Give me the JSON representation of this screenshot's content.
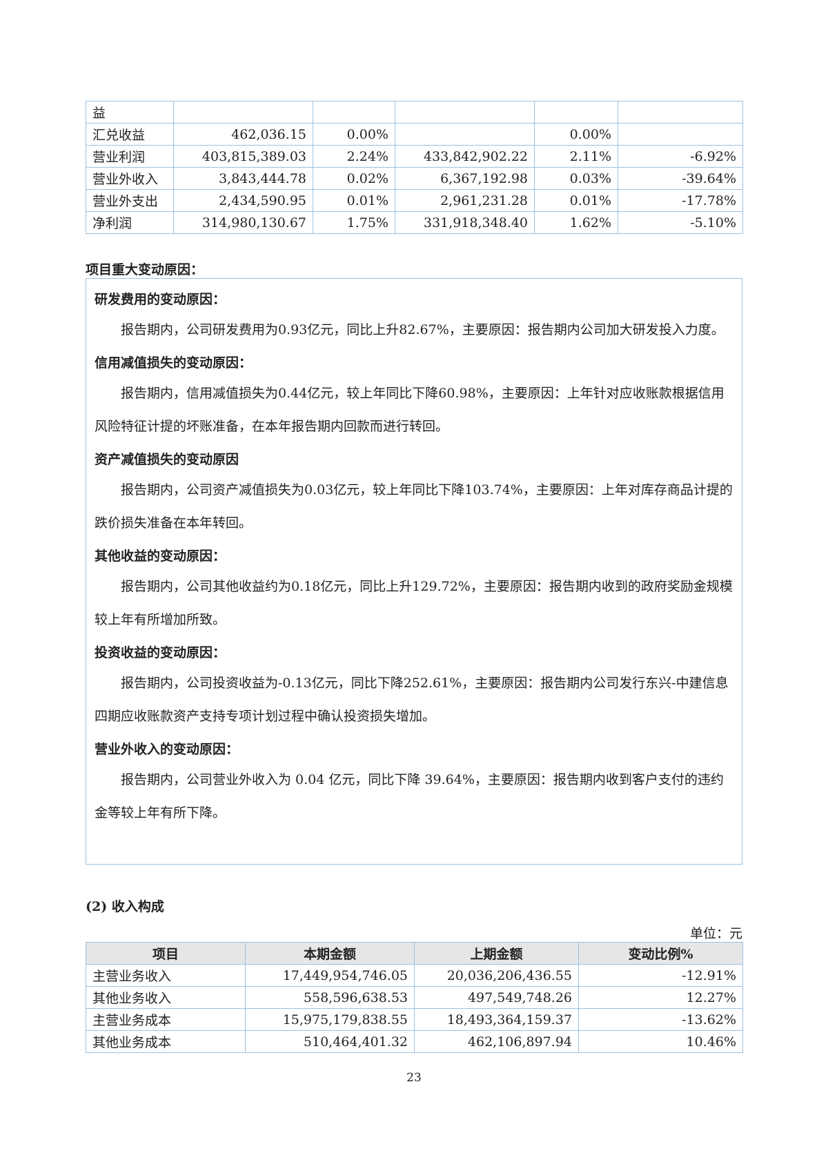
{
  "profit_table": {
    "rows": [
      {
        "item": "益",
        "current": "",
        "current_pct": "",
        "prior": "",
        "prior_pct": "",
        "change": ""
      },
      {
        "item": "汇兑收益",
        "current": "462,036.15",
        "current_pct": "0.00%",
        "prior": "",
        "prior_pct": "0.00%",
        "change": ""
      },
      {
        "item": "营业利润",
        "current": "403,815,389.03",
        "current_pct": "2.24%",
        "prior": "433,842,902.22",
        "prior_pct": "2.11%",
        "change": "-6.92%"
      },
      {
        "item": "营业外收入",
        "current": "3,843,444.78",
        "current_pct": "0.02%",
        "prior": "6,367,192.98",
        "prior_pct": "0.03%",
        "change": "-39.64%"
      },
      {
        "item": "营业外支出",
        "current": "2,434,590.95",
        "current_pct": "0.01%",
        "prior": "2,961,231.28",
        "prior_pct": "0.01%",
        "change": "-17.78%"
      },
      {
        "item": "净利润",
        "current": "314,980,130.67",
        "current_pct": "1.75%",
        "prior": "331,918,348.40",
        "prior_pct": "1.62%",
        "change": "-5.10%"
      }
    ]
  },
  "reasons": {
    "heading": "项目重大变动原因：",
    "sections": [
      {
        "title": "研发费用的变动原因：",
        "text": "报告期内，公司研发费用为0.93亿元，同比上升82.67%，主要原因：报告期内公司加大研发投入力度。"
      },
      {
        "title": "信用减值损失的变动原因：",
        "text": "报告期内，信用减值损失为0.44亿元，较上年同比下降60.98%，主要原因：上年针对应收账款根据信用风险特征计提的坏账准备，在本年报告期内回款而进行转回。"
      },
      {
        "title": "资产减值损失的变动原因",
        "text": "报告期内，公司资产减值损失为0.03亿元，较上年同比下降103.74%，主要原因：上年对库存商品计提的跌价损失准备在本年转回。"
      },
      {
        "title": "其他收益的变动原因：",
        "text": "报告期内，公司其他收益约为0.18亿元，同比上升129.72%，主要原因：报告期内收到的政府奖励金规模较上年有所增加所致。"
      },
      {
        "title": "投资收益的变动原因：",
        "text": "报告期内，公司投资收益为-0.13亿元，同比下降252.61%，主要原因：报告期内公司发行东兴-中建信息四期应收账款资产支持专项计划过程中确认投资损失增加。"
      },
      {
        "title": "营业外收入的变动原因：",
        "text": "报告期内，公司营业外收入为 0.04 亿元，同比下降 39.64%，主要原因：报告期内收到客户支付的违约金等较上年有所下降。"
      }
    ]
  },
  "revenue": {
    "heading": "(2) 收入构成",
    "unit": "单位：元",
    "headers": [
      "项目",
      "本期金额",
      "上期金额",
      "变动比例%"
    ],
    "rows": [
      [
        "主营业务收入",
        "17,449,954,746.05",
        "20,036,206,436.55",
        "-12.91%"
      ],
      [
        "其他业务收入",
        "558,596,638.53",
        "497,549,748.26",
        "12.27%"
      ],
      [
        "主营业务成本",
        "15,975,179,838.55",
        "18,493,364,159.37",
        "-13.62%"
      ],
      [
        "其他业务成本",
        "510,464,401.32",
        "462,106,897.94",
        "10.46%"
      ]
    ]
  },
  "page_number": "23"
}
